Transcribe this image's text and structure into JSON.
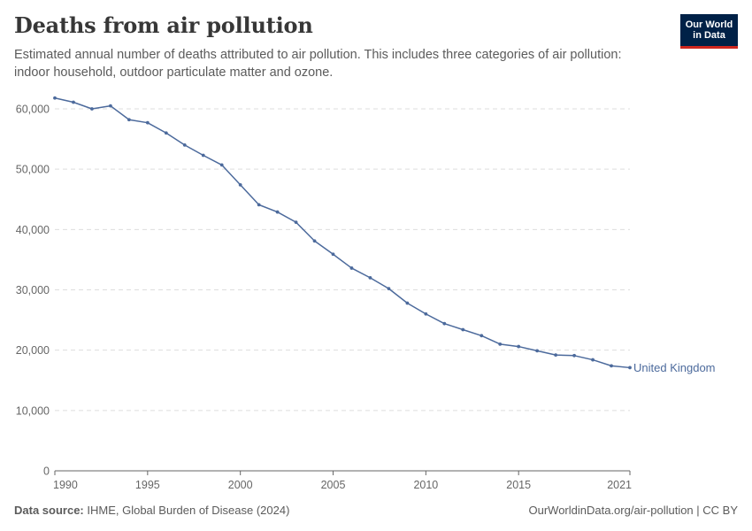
{
  "title": "Deaths from air pollution",
  "subtitle": "Estimated annual number of deaths attributed to air pollution. This includes three categories of air pollution: indoor household, outdoor particulate matter and ozone.",
  "logo": {
    "line1": "Our World",
    "line2": "in Data"
  },
  "footer": {
    "source_label": "Data source:",
    "source_text": "IHME, Global Burden of Disease (2024)",
    "credit": "OurWorldinData.org/air-pollution | CC BY"
  },
  "colors": {
    "series": "#4c6a9c",
    "grid": "#dddddd",
    "axis": "#666666",
    "text": "#666666"
  },
  "chart_data": {
    "type": "line",
    "title": "Deaths from air pollution",
    "xlabel": "",
    "ylabel": "",
    "xlim": [
      1990,
      2021
    ],
    "ylim": [
      0,
      60000
    ],
    "yticks": [
      0,
      10000,
      20000,
      30000,
      40000,
      50000,
      60000
    ],
    "ytick_labels": [
      "0",
      "10,000",
      "20,000",
      "30,000",
      "40,000",
      "50,000",
      "60,000"
    ],
    "xticks": [
      1990,
      1995,
      2000,
      2005,
      2010,
      2015,
      2021
    ],
    "xtick_labels": [
      "1990",
      "1995",
      "2000",
      "2005",
      "2010",
      "2015",
      "2021"
    ],
    "grid": true,
    "series": [
      {
        "name": "United Kingdom",
        "x": [
          1990,
          1991,
          1992,
          1993,
          1994,
          1995,
          1996,
          1997,
          1998,
          1999,
          2000,
          2001,
          2002,
          2003,
          2004,
          2005,
          2006,
          2007,
          2008,
          2009,
          2010,
          2011,
          2012,
          2013,
          2014,
          2015,
          2016,
          2017,
          2018,
          2019,
          2020,
          2021
        ],
        "values": [
          61800,
          61100,
          60000,
          60500,
          58200,
          57700,
          56000,
          54000,
          52300,
          50700,
          47400,
          44100,
          42900,
          41200,
          38100,
          35900,
          33600,
          32000,
          30200,
          27800,
          26000,
          24400,
          23400,
          22400,
          21000,
          20600,
          19900,
          19200,
          19100,
          18400,
          17400,
          17100
        ]
      }
    ]
  }
}
